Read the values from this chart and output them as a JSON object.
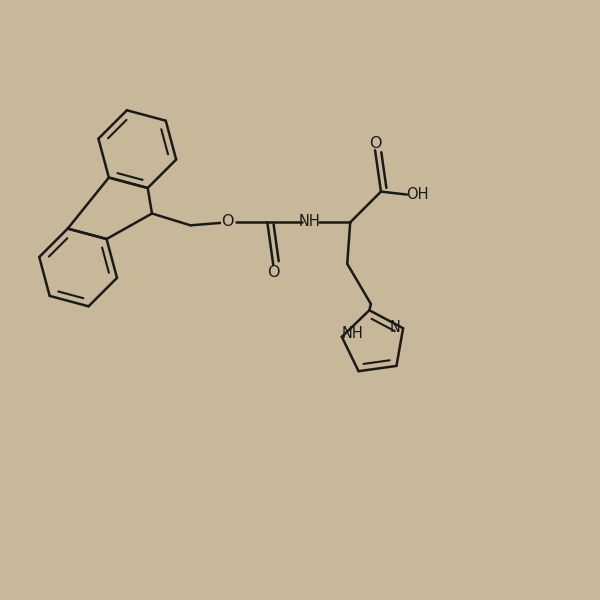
{
  "bg_color": "#c8b89a",
  "line_color": "#1a1a1a",
  "line_width": 1.8,
  "font_size": 10.5,
  "figsize": [
    6.0,
    6.0
  ],
  "dpi": 100,
  "xlim": [
    0,
    10
  ],
  "ylim": [
    0,
    10
  ]
}
